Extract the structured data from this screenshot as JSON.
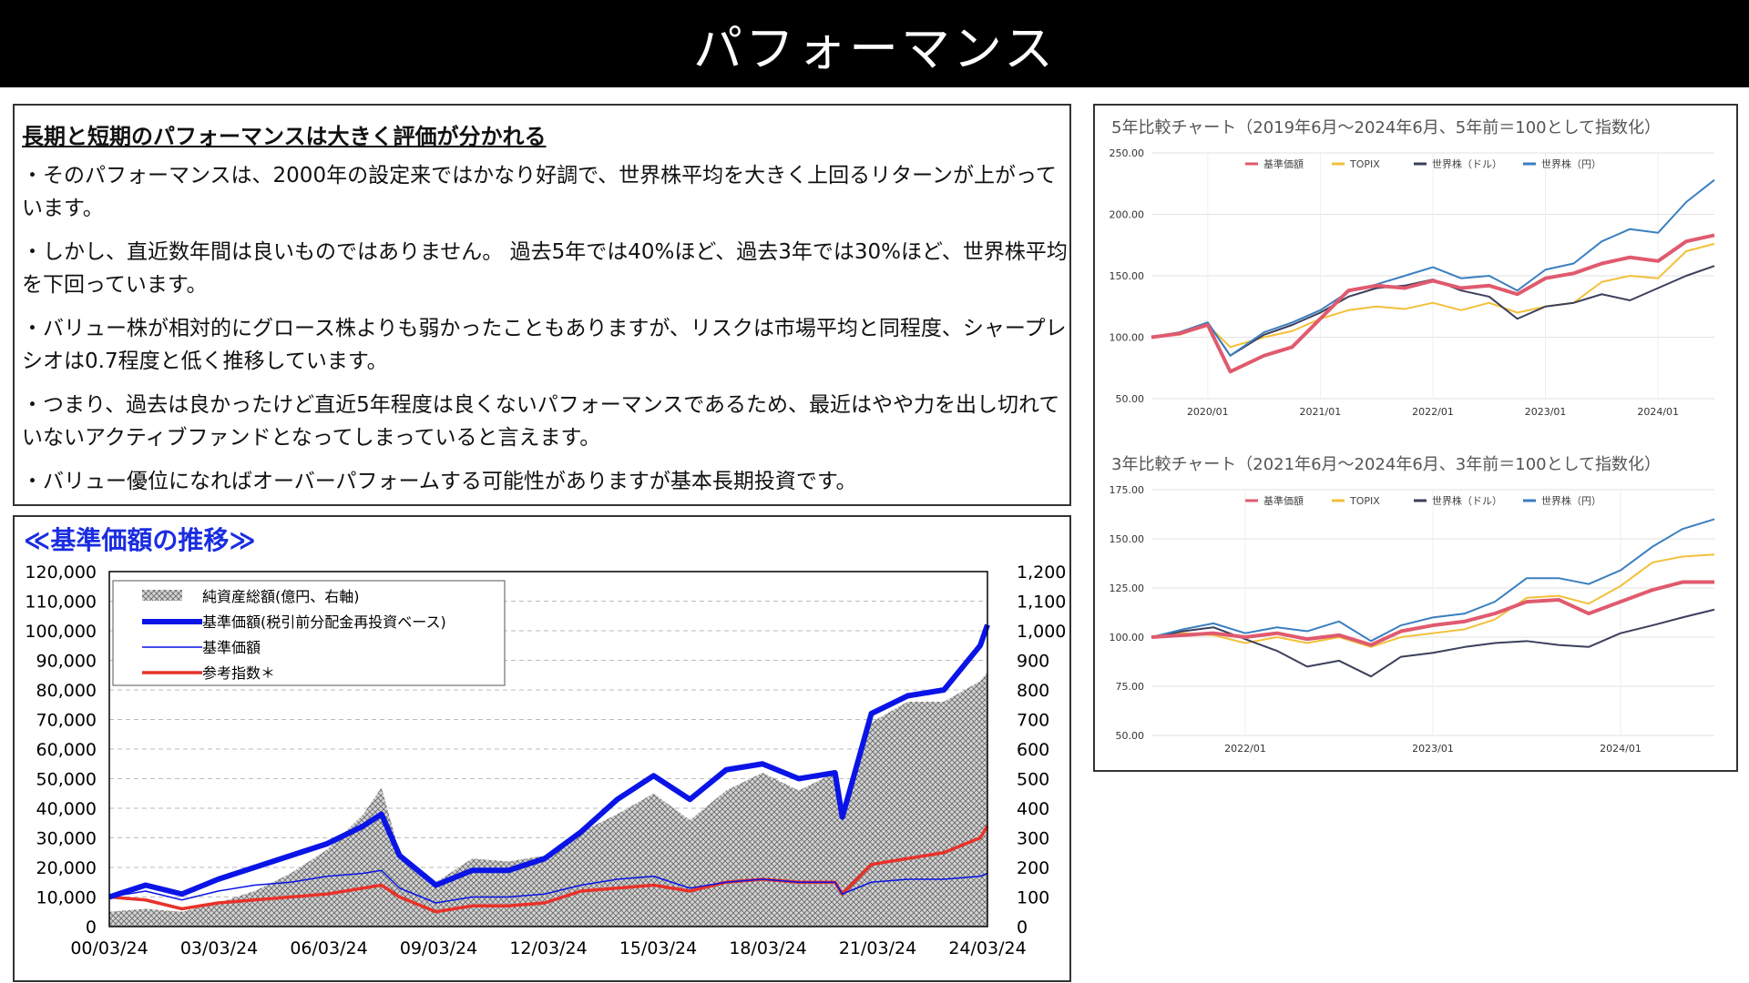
{
  "header": {
    "title": "パフォーマンス"
  },
  "summary": {
    "headline": "長期と短期のパフォーマンスは大きく評価が分かれる",
    "bullets": [
      "・そのパフォーマンスは、2000年の設定来ではかなり好調で、世界株平均を大きく上回るリターンが上がっています。",
      "・しかし、直近数年間は良いものではありません。 過去5年では40%ほど、過去3年では30%ほど、世界株平均を下回っています。",
      "・バリュー株が相対的にグロース株よりも弱かったこともありますが、リスクは市場平均と同程度、シャープレシオは0.7程度と低く推移しています。",
      "・つまり、過去は良かったけど直近5年程度は良くないパフォーマンスであるため、最近はやや力を出し切れていないアクティブファンドとなってしまっていると言えます。",
      "・バリュー優位になればオーバーパフォームする可能性がありますが基本長期投資です。"
    ]
  },
  "colors": {
    "nav_blue": "#0a14e6",
    "ref_red": "#e8322a",
    "fund_pink": "#e05a6e",
    "topix_yellow": "#f2c03a",
    "world_usd_navy": "#3b3f5c",
    "world_jpy_blue": "#3a7fbf"
  },
  "chart_data": [
    {
      "type": "line",
      "title": "≪基準価額の推移≫",
      "x_ticks": [
        "00/03/24",
        "03/03/24",
        "06/03/24",
        "09/03/24",
        "12/03/24",
        "15/03/24",
        "18/03/24",
        "21/03/24",
        "24/03/24"
      ],
      "ylim": [
        0,
        120000
      ],
      "y_ticks": [
        "120,000",
        "110,000",
        "100,000",
        "90,000",
        "80,000",
        "70,000",
        "60,000",
        "50,000",
        "40,000",
        "30,000",
        "20,000",
        "10,000",
        "0"
      ],
      "y2lim": [
        0,
        1200
      ],
      "y2_ticks": [
        "1,200",
        "1,100",
        "1,000",
        "900",
        "800",
        "700",
        "600",
        "500",
        "400",
        "300",
        "200",
        "100",
        "0"
      ],
      "legend": [
        {
          "label": "純資産総額(億円、右軸)",
          "style": "hatch"
        },
        {
          "label": "基準価額(税引前分配金再投資ベース)",
          "style": "thick-blue"
        },
        {
          "label": "基準価額",
          "style": "thin-blue"
        },
        {
          "label": "参考指数＊",
          "style": "red"
        }
      ],
      "x": [
        2000,
        2001,
        2002,
        2003,
        2004,
        2005,
        2006,
        2007,
        2007.5,
        2008,
        2009,
        2010,
        2011,
        2012,
        2013,
        2014,
        2015,
        2016,
        2017,
        2018,
        2019,
        2020,
        2020.2,
        2021,
        2022,
        2023,
        2024,
        2024.2
      ],
      "series": [
        {
          "name": "基準価額(税引前分配金再投資ベース)",
          "values": [
            10000,
            14000,
            11000,
            16000,
            20000,
            24000,
            28000,
            34000,
            38000,
            24000,
            14000,
            19000,
            19000,
            23000,
            32000,
            43000,
            51000,
            43000,
            53000,
            55000,
            50000,
            52000,
            37000,
            72000,
            78000,
            80000,
            95000,
            102000
          ]
        },
        {
          "name": "基準価額",
          "values": [
            10000,
            12000,
            9000,
            12000,
            14000,
            15000,
            17000,
            18000,
            19000,
            13000,
            8000,
            10000,
            10000,
            11000,
            14000,
            16000,
            17000,
            13000,
            15000,
            16000,
            15000,
            15000,
            11000,
            15000,
            16000,
            16000,
            17000,
            18000
          ]
        },
        {
          "name": "参考指数＊",
          "values": [
            10000,
            9000,
            6000,
            8000,
            9000,
            10000,
            11000,
            13000,
            14000,
            10000,
            5000,
            7000,
            7000,
            8000,
            12000,
            13000,
            14000,
            12000,
            15000,
            16000,
            15000,
            15000,
            11000,
            21000,
            23000,
            25000,
            30000,
            34000
          ]
        },
        {
          "name": "純資産総額(億円、右軸)",
          "values": [
            50,
            60,
            50,
            80,
            120,
            180,
            260,
            380,
            470,
            250,
            150,
            230,
            220,
            240,
            320,
            380,
            450,
            360,
            460,
            520,
            460,
            520,
            400,
            690,
            760,
            760,
            830,
            860
          ]
        }
      ]
    },
    {
      "type": "line",
      "title": "5年比較チャート（2019年6月〜2024年6月、5年前＝100として指数化）",
      "ylim": [
        50,
        250
      ],
      "y_ticks": [
        "250.00",
        "200.00",
        "150.00",
        "100.00",
        "50.00"
      ],
      "x_ticks": [
        "2020/01",
        "2021/01",
        "2022/01",
        "2023/01",
        "2024/01"
      ],
      "legend": [
        "基準価額",
        "TOPIX",
        "世界株（ドル）",
        "世界株（円）"
      ],
      "x": [
        2019.5,
        2019.75,
        2020.0,
        2020.2,
        2020.5,
        2020.75,
        2021.0,
        2021.25,
        2021.5,
        2021.75,
        2022.0,
        2022.25,
        2022.5,
        2022.75,
        2023.0,
        2023.25,
        2023.5,
        2023.75,
        2024.0,
        2024.25,
        2024.5
      ],
      "series": [
        {
          "name": "基準価額",
          "values": [
            100,
            103,
            110,
            72,
            85,
            92,
            115,
            138,
            142,
            140,
            146,
            140,
            142,
            135,
            148,
            152,
            160,
            165,
            162,
            178,
            183
          ]
        },
        {
          "name": "TOPIX",
          "values": [
            100,
            102,
            110,
            92,
            100,
            105,
            115,
            122,
            125,
            123,
            128,
            122,
            128,
            120,
            125,
            128,
            145,
            150,
            148,
            170,
            176
          ]
        },
        {
          "name": "世界株（ドル）",
          "values": [
            100,
            104,
            112,
            85,
            102,
            110,
            120,
            133,
            140,
            142,
            147,
            138,
            133,
            115,
            125,
            128,
            135,
            130,
            140,
            150,
            158
          ]
        },
        {
          "name": "世界株（円）",
          "values": [
            100,
            104,
            112,
            85,
            104,
            112,
            122,
            137,
            143,
            150,
            157,
            148,
            150,
            138,
            155,
            160,
            178,
            188,
            185,
            210,
            228
          ]
        }
      ]
    },
    {
      "type": "line",
      "title": "3年比較チャート（2021年6月〜2024年6月、3年前＝100として指数化）",
      "ylim": [
        50,
        175
      ],
      "y_ticks": [
        "175.00",
        "150.00",
        "125.00",
        "100.00",
        "75.00",
        "50.00"
      ],
      "x_ticks": [
        "2022/01",
        "2023/01",
        "2024/01"
      ],
      "legend": [
        "基準価額",
        "TOPIX",
        "世界株（ドル）",
        "世界株（円）"
      ],
      "x": [
        2021.5,
        2021.67,
        2021.83,
        2022.0,
        2022.17,
        2022.33,
        2022.5,
        2022.67,
        2022.83,
        2023.0,
        2023.17,
        2023.33,
        2023.5,
        2023.67,
        2023.83,
        2024.0,
        2024.17,
        2024.33,
        2024.5
      ],
      "series": [
        {
          "name": "基準価額",
          "values": [
            100,
            101,
            102,
            100,
            102,
            99,
            101,
            96,
            103,
            106,
            108,
            112,
            118,
            119,
            112,
            118,
            124,
            128,
            128
          ]
        },
        {
          "name": "TOPIX",
          "values": [
            100,
            102,
            101,
            97,
            100,
            97,
            100,
            95,
            100,
            102,
            104,
            109,
            120,
            121,
            117,
            126,
            138,
            141,
            142
          ]
        },
        {
          "name": "世界株（ドル）",
          "values": [
            100,
            103,
            105,
            99,
            93,
            85,
            88,
            80,
            90,
            92,
            95,
            97,
            98,
            96,
            95,
            102,
            106,
            110,
            114
          ]
        },
        {
          "name": "世界株（円）",
          "values": [
            100,
            104,
            107,
            102,
            105,
            103,
            108,
            98,
            106,
            110,
            112,
            118,
            130,
            130,
            127,
            134,
            146,
            155,
            160
          ]
        }
      ]
    }
  ]
}
